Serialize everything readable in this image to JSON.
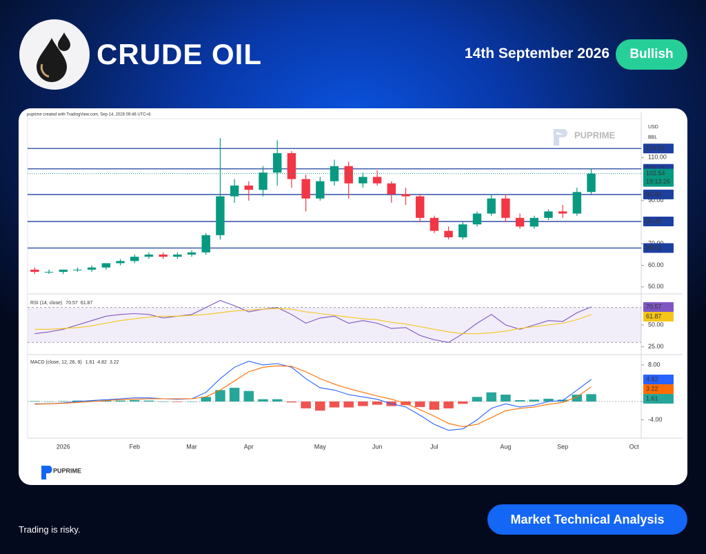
{
  "header": {
    "title": "CRUDE OIL",
    "date": "14th September 2026",
    "sentiment": "Bullish"
  },
  "footer": {
    "disclaimer": "Trading is risky.",
    "button": "Market Technical Analysis"
  },
  "brand": "PUPRIME",
  "chart_caption": "puprime created with TradingView.com, Sep 14, 2026 09:46 UTC+8",
  "chart_data": [
    {
      "type": "candlestick",
      "units": [
        "USD",
        "BBL"
      ],
      "categories": [
        null,
        null,
        "2026",
        null,
        null,
        null,
        null,
        "Feb",
        null,
        null,
        null,
        "Mar",
        null,
        null,
        null,
        "Apr",
        null,
        null,
        null,
        null,
        "May",
        null,
        null,
        null,
        "Jun",
        null,
        null,
        null,
        "Jul",
        null,
        null,
        null,
        null,
        "Aug",
        null,
        null,
        null,
        "Sep",
        null,
        null,
        null,
        null,
        "Oct"
      ],
      "ohlc": [
        [
          58,
          59,
          56,
          57
        ],
        [
          57,
          58,
          56,
          57
        ],
        [
          57,
          58,
          56,
          58
        ],
        [
          58,
          59,
          57,
          58
        ],
        [
          58,
          60,
          57,
          59
        ],
        [
          59,
          61,
          58,
          61
        ],
        [
          61,
          63,
          60,
          62
        ],
        [
          62,
          65,
          61,
          64
        ],
        [
          64,
          66,
          63,
          65
        ],
        [
          65,
          66,
          63,
          64
        ],
        [
          64,
          66,
          63,
          65
        ],
        [
          65,
          67,
          64,
          66
        ],
        [
          66,
          75,
          65,
          74
        ],
        [
          74,
          119,
          72,
          92
        ],
        [
          92,
          100,
          89,
          97
        ],
        [
          97,
          99,
          90,
          95
        ],
        [
          95,
          106,
          92,
          103
        ],
        [
          103,
          118,
          97,
          112
        ],
        [
          112,
          113,
          96,
          100
        ],
        [
          100,
          102,
          85,
          91
        ],
        [
          91,
          101,
          90,
          99
        ],
        [
          99,
          109,
          97,
          106
        ],
        [
          106,
          108,
          91,
          98
        ],
        [
          98,
          103,
          96,
          101
        ],
        [
          101,
          104,
          97,
          98
        ],
        [
          98,
          99,
          89,
          93
        ],
        [
          93,
          96,
          88,
          92
        ],
        [
          92,
          93,
          80,
          82
        ],
        [
          82,
          83,
          75,
          76
        ],
        [
          76,
          78,
          72,
          73
        ],
        [
          73,
          80,
          72,
          79
        ],
        [
          79,
          85,
          78,
          84
        ],
        [
          84,
          93,
          83,
          91
        ],
        [
          91,
          93,
          80,
          82
        ],
        [
          82,
          84,
          77,
          78
        ],
        [
          78,
          83,
          77,
          82
        ],
        [
          82,
          86,
          81,
          85
        ],
        [
          85,
          88,
          82,
          84
        ],
        [
          84,
          96,
          83,
          94
        ],
        [
          94,
          105,
          93,
          102.54
        ],
        null,
        null,
        null
      ],
      "up_color": "#089981",
      "down_color": "#f23645",
      "ylim": [
        49,
        128
      ],
      "yticks": [
        {
          "value": 50,
          "label": "50.00"
        },
        {
          "value": 60,
          "label": "60.00"
        },
        {
          "value": 70,
          "label": "70.00"
        },
        {
          "value": 90,
          "label": "90.00"
        },
        {
          "value": 110,
          "label": "110.00"
        }
      ],
      "levels": [
        114.16,
        104.74,
        92.84,
        80.33,
        68.03
      ],
      "level_color": "#1d3f9e",
      "last_price": 102.54,
      "countdown": "19:13:26"
    },
    {
      "type": "line",
      "title": "RSI (14, close)",
      "ylim": [
        20,
        80
      ],
      "yticks": [
        {
          "value": 25,
          "label": "25.00"
        },
        {
          "value": 50,
          "label": "50.00"
        }
      ],
      "band": [
        30,
        70
      ],
      "band_color": "#7e57c2",
      "series": [
        {
          "color": "#7e57c2",
          "values": [
            40,
            42,
            45,
            50,
            55,
            60,
            62,
            63,
            62,
            58,
            60,
            62,
            70,
            78,
            72,
            65,
            68,
            70,
            62,
            52,
            58,
            60,
            52,
            55,
            52,
            46,
            47,
            38,
            33,
            30,
            40,
            52,
            62,
            50,
            45,
            50,
            55,
            54,
            64,
            70.57,
            null,
            null,
            null
          ]
        },
        {
          "color": "#f5c518",
          "values": [
            45,
            45,
            46,
            47,
            49,
            52,
            55,
            57,
            59,
            60,
            60,
            61,
            62,
            64,
            66,
            67,
            68,
            69,
            68,
            65,
            63,
            61,
            59,
            57,
            56,
            53,
            51,
            48,
            45,
            42,
            40,
            40,
            41,
            43,
            46,
            48,
            50,
            52,
            56,
            61.87,
            null,
            null,
            null
          ]
        }
      ]
    },
    {
      "type": "macd",
      "title": "MACD (close, 12, 26, 9)",
      "ylim": [
        -8,
        9.5
      ],
      "yticks": [
        {
          "value": 8,
          "label": "8.00"
        },
        {
          "value": 0,
          "label": "0.00"
        },
        {
          "value": -4,
          "label": "-4.00"
        }
      ],
      "series": [
        {
          "type": "bar",
          "color": "#26a69a",
          "negative_color": "#ef5350",
          "values": [
            0.1,
            0,
            0.1,
            0.2,
            0.2,
            0.2,
            0.2,
            0.3,
            0.2,
            0,
            -0.1,
            0,
            1,
            2.5,
            3,
            2.3,
            0.5,
            0.5,
            -0.2,
            -1.5,
            -2,
            -1.3,
            -1.3,
            -1,
            -0.7,
            -1,
            -0.8,
            -1.2,
            -1.8,
            -1.5,
            -0.5,
            1,
            2,
            1.5,
            0.3,
            0.4,
            0.6,
            0.4,
            1.5,
            1.61,
            null,
            null,
            null
          ]
        },
        {
          "type": "line",
          "color": "#2962ff",
          "values": [
            -0.5,
            -0.5,
            -0.3,
            0,
            0.2,
            0.4,
            0.6,
            0.8,
            0.8,
            0.6,
            0.5,
            0.6,
            2,
            5,
            7.5,
            8.8,
            8,
            8.3,
            7.5,
            5,
            3,
            2.5,
            1.5,
            1,
            0.5,
            -0.5,
            -1.2,
            -3,
            -5,
            -6.3,
            -6,
            -4,
            -1.5,
            -0.5,
            -1.2,
            -0.8,
            0,
            0.2,
            2.5,
            4.82,
            null,
            null,
            null
          ]
        },
        {
          "type": "line",
          "color": "#ff6d00",
          "values": [
            -0.6,
            -0.5,
            -0.4,
            -0.2,
            0,
            0.2,
            0.4,
            0.5,
            0.6,
            0.6,
            0.6,
            0.6,
            1,
            2.5,
            4.5,
            6.5,
            7.5,
            7.8,
            7.7,
            6.5,
            5,
            3.8,
            2.8,
            2,
            1.2,
            0.5,
            -0.4,
            -1.8,
            -3.2,
            -4.8,
            -5.5,
            -5,
            -3.5,
            -2,
            -1.5,
            -1.2,
            -0.6,
            -0.2,
            1,
            3.22,
            null,
            null,
            null
          ]
        }
      ]
    }
  ]
}
